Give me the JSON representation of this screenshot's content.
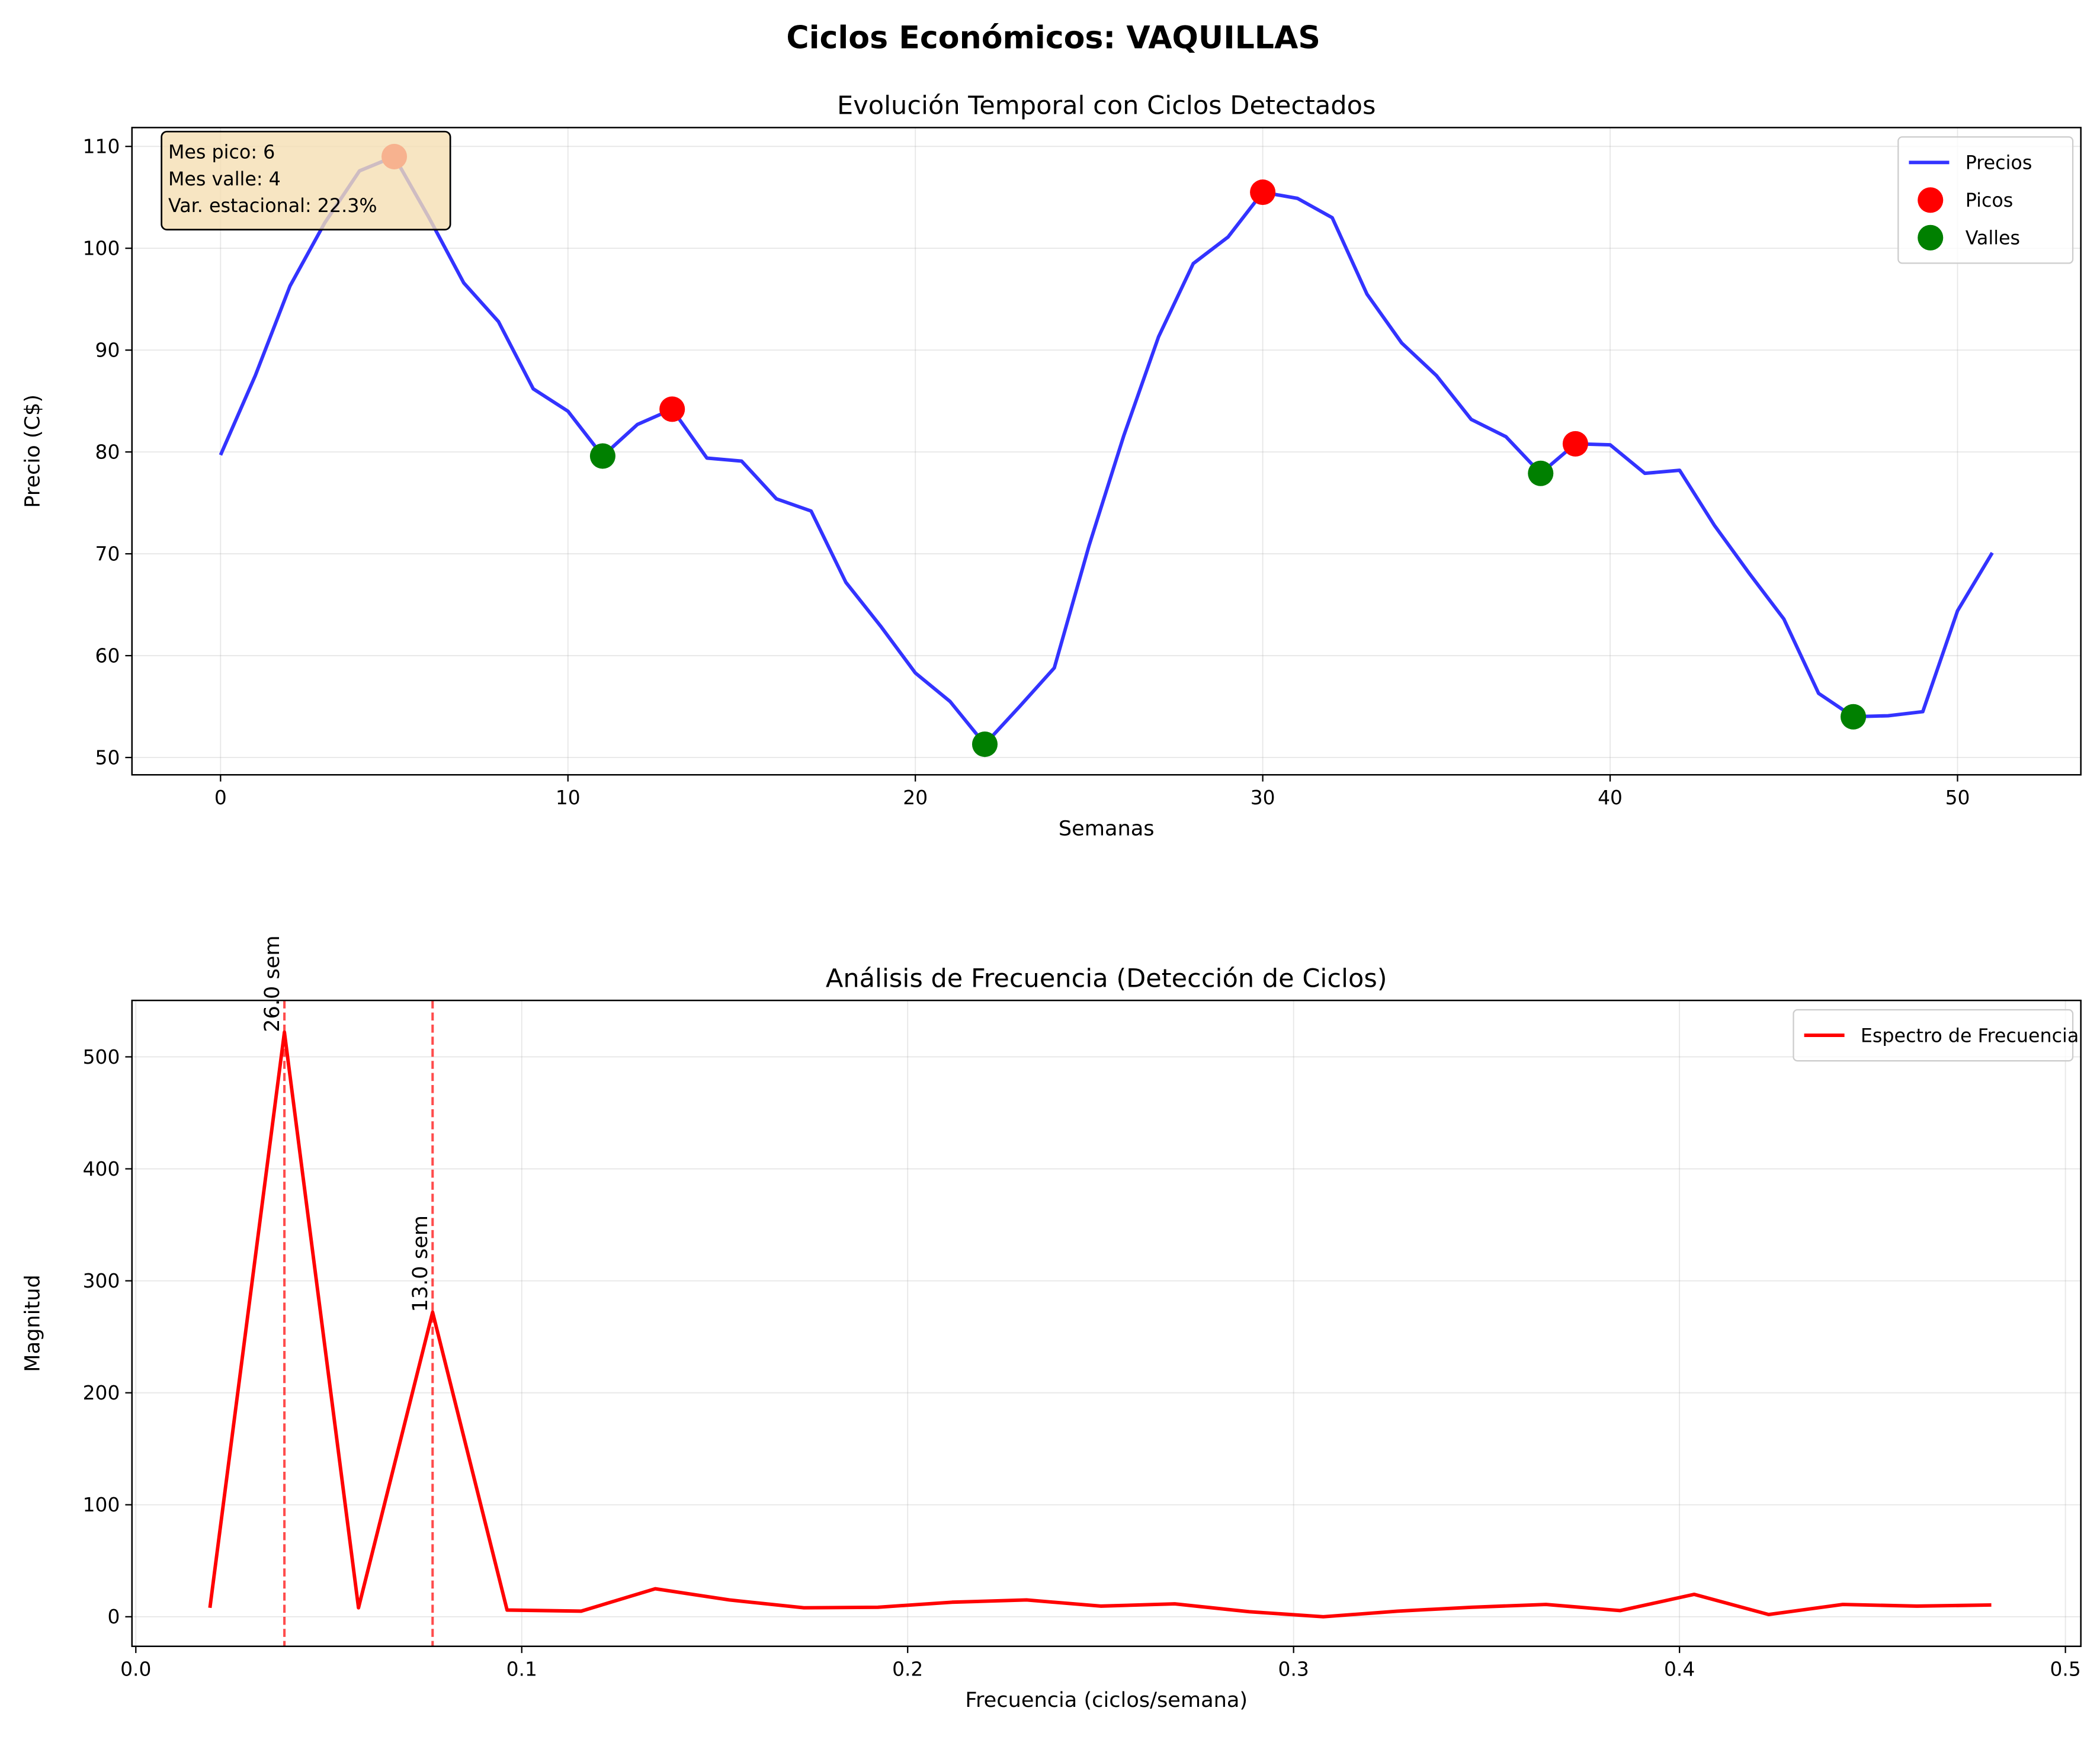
{
  "suptitle": "Ciclos Económicos: VAQUILLAS",
  "chart_data": [
    {
      "type": "line",
      "title": "Evolución Temporal con Ciclos Detectados",
      "xlabel": "Semanas",
      "ylabel": "Precio (C$)",
      "xlim": [
        -2.55,
        53.55
      ],
      "ylim": [
        48.3,
        111.85
      ],
      "xticks": [
        0,
        10,
        20,
        30,
        40,
        50
      ],
      "yticks": [
        50,
        60,
        70,
        80,
        90,
        100,
        110
      ],
      "grid": true,
      "legend_placement": "top-right",
      "series": [
        {
          "name": "Precios",
          "kind": "line",
          "color": "#3333ff",
          "x": [
            0,
            1,
            2,
            3,
            4,
            5,
            6,
            7,
            8,
            9,
            10,
            11,
            12,
            13,
            14,
            15,
            16,
            17,
            18,
            19,
            20,
            21,
            22,
            23,
            24,
            25,
            26,
            27,
            28,
            29,
            30,
            31,
            32,
            33,
            34,
            35,
            36,
            37,
            38,
            39,
            40,
            41,
            42,
            43,
            44,
            45,
            46,
            47,
            48,
            49,
            50,
            51
          ],
          "y": [
            79.7,
            87.5,
            96.3,
            102.5,
            107.6,
            109.0,
            103.0,
            96.6,
            92.8,
            86.2,
            84.0,
            79.6,
            82.7,
            84.2,
            79.4,
            79.1,
            75.4,
            74.2,
            67.2,
            62.9,
            58.3,
            55.5,
            51.3,
            55.0,
            58.8,
            70.8,
            81.6,
            91.3,
            98.5,
            101.1,
            105.5,
            104.9,
            103.0,
            95.5,
            90.7,
            87.5,
            83.2,
            81.5,
            77.9,
            80.8,
            80.7,
            77.9,
            78.2,
            72.8,
            68.1,
            63.6,
            56.3,
            54.0,
            54.1,
            54.5,
            64.4,
            70.1
          ]
        },
        {
          "name": "Picos",
          "kind": "scatter",
          "color": "#ff0000",
          "x": [
            5,
            13,
            30,
            39
          ],
          "y": [
            109.0,
            84.2,
            105.5,
            80.8
          ]
        },
        {
          "name": "Valles",
          "kind": "scatter",
          "color": "#008000",
          "x": [
            11,
            22,
            38,
            47
          ],
          "y": [
            79.6,
            51.3,
            77.9,
            54.0
          ]
        }
      ],
      "annotation": {
        "lines": [
          "Mes pico: 6",
          "Mes valle: 4",
          "Var. estacional: 22.3%"
        ],
        "background": "#f5deb3"
      }
    },
    {
      "type": "line",
      "title": "Análisis de Frecuencia (Detección de Ciclos)",
      "xlabel": "Frecuencia (ciclos/semana)",
      "ylabel": "Magnitud",
      "xlim": [
        -0.001,
        0.504
      ],
      "ylim": [
        -26.4,
        550.4
      ],
      "xticks": [
        0.0,
        0.1,
        0.2,
        0.3,
        0.4,
        0.5
      ],
      "xtick_labels": [
        "0.0",
        "0.1",
        "0.2",
        "0.3",
        "0.4",
        "0.5"
      ],
      "yticks": [
        0,
        100,
        200,
        300,
        400,
        500
      ],
      "grid": true,
      "legend_placement": "top-right",
      "series": [
        {
          "name": "Espectro de Frecuencia",
          "color": "#ff0000",
          "x": [
            0.0192,
            0.0385,
            0.0577,
            0.0769,
            0.0962,
            0.1154,
            0.1346,
            0.1538,
            0.1731,
            0.1923,
            0.2115,
            0.2308,
            0.25,
            0.2692,
            0.2885,
            0.3077,
            0.3269,
            0.3462,
            0.3654,
            0.3846,
            0.4038,
            0.4231,
            0.4423,
            0.4615,
            0.4808
          ],
          "y": [
            8,
            522,
            8,
            272,
            6,
            5,
            25,
            15,
            8,
            8.5,
            13,
            15,
            9.5,
            11.5,
            4.5,
            0,
            5,
            8.5,
            11,
            5.5,
            20,
            2,
            11,
            9.5,
            10.5
          ]
        }
      ],
      "markers": [
        {
          "x": 0.0385,
          "y": 522,
          "label": "26.0 sem"
        },
        {
          "x": 0.0769,
          "y": 272,
          "label": "13.0 sem"
        }
      ]
    }
  ]
}
